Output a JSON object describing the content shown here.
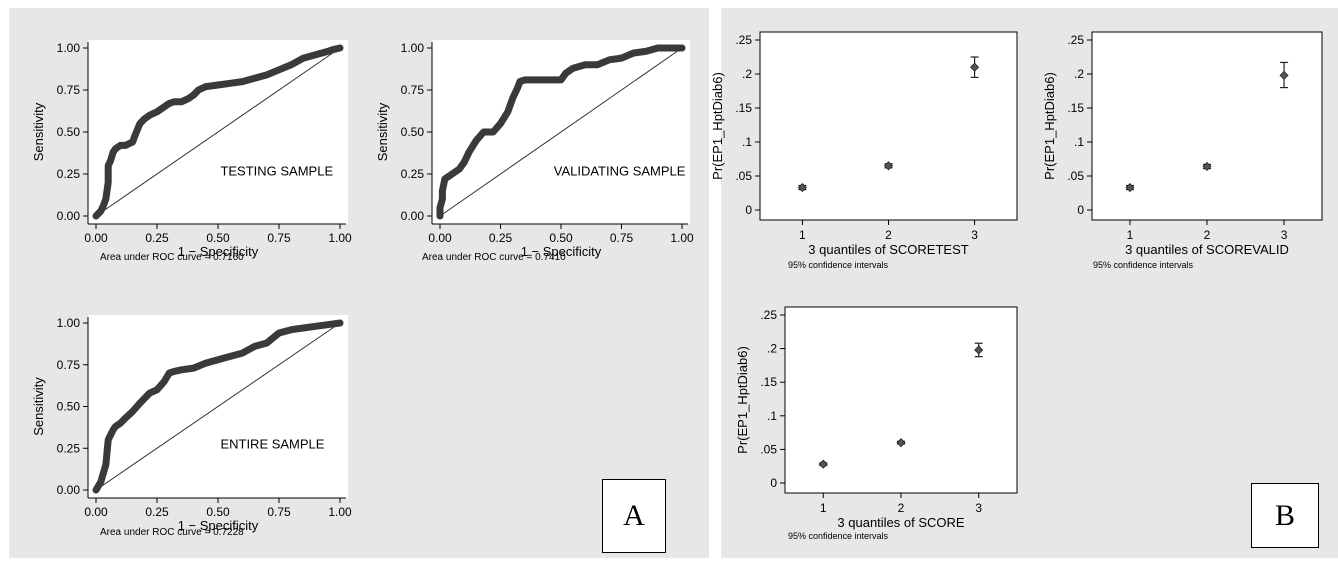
{
  "panel_a": {
    "letter": "A",
    "roc_plots": [
      {
        "label": "TESTING SAMPLE",
        "auc_text": "Area under ROC curve = 0.7160",
        "xlabel": "1 − Specificity",
        "ylabel": "Sensitivity",
        "ticks": [
          "0.00",
          "0.25",
          "0.50",
          "0.75",
          "1.00"
        ]
      },
      {
        "label": "VALIDATING SAMPLE",
        "auc_text": "Area under ROC curve = 0.7410",
        "xlabel": "1 − Specificity",
        "ylabel": "Sensitivity",
        "ticks": [
          "0.00",
          "0.25",
          "0.50",
          "0.75",
          "1.00"
        ]
      },
      {
        "label": "ENTIRE SAMPLE",
        "auc_text": "Area under ROC curve = 0.7228",
        "xlabel": "1 − Specificity",
        "ylabel": "Sensitivity",
        "ticks": [
          "0.00",
          "0.25",
          "0.50",
          "0.75",
          "1.00"
        ]
      }
    ]
  },
  "panel_b": {
    "letter": "B",
    "ci_plots": [
      {
        "xlabel": "3 quantiles of SCORETEST",
        "ylabel": "Pr(EP1_HptDiab6)",
        "note": "95% confidence intervals",
        "xticks": [
          "1",
          "2",
          "3"
        ],
        "yticks": [
          "0",
          ".05",
          ".1",
          ".15",
          ".2",
          ".25"
        ]
      },
      {
        "xlabel": "3 quantiles of SCOREVALID",
        "ylabel": "Pr(EP1_HptDiab6)",
        "note": "95% confidence intervals",
        "xticks": [
          "1",
          "2",
          "3"
        ],
        "yticks": [
          "0",
          ".05",
          ".1",
          ".15",
          ".2",
          ".25"
        ]
      },
      {
        "xlabel": "3 quantiles of SCORE",
        "ylabel": "Pr(EP1_HptDiab6)",
        "note": "95% confidence intervals",
        "xticks": [
          "1",
          "2",
          "3"
        ],
        "yticks": [
          "0",
          ".05",
          ".1",
          ".15",
          ".2",
          ".25"
        ]
      }
    ]
  },
  "chart_data": [
    {
      "type": "line",
      "title": "",
      "xlabel": "1 − Specificity",
      "ylabel": "Sensitivity",
      "xlim": [
        0,
        1
      ],
      "ylim": [
        0,
        1
      ],
      "annotation": "TESTING SAMPLE",
      "auc": 0.716,
      "series": [
        {
          "x": [
            0,
            0.02,
            0.03,
            0.04,
            0.05,
            0.05,
            0.06,
            0.07,
            0.08,
            0.1,
            0.12,
            0.15,
            0.16,
            0.18,
            0.2,
            0.22,
            0.25,
            0.28,
            0.3,
            0.32,
            0.35,
            0.38,
            0.4,
            0.42,
            0.45,
            0.5,
            0.55,
            0.6,
            0.65,
            0.7,
            0.75,
            0.8,
            0.85,
            0.9,
            0.95,
            0.97,
            1.0
          ],
          "y": [
            0,
            0.03,
            0.06,
            0.1,
            0.2,
            0.3,
            0.33,
            0.38,
            0.4,
            0.42,
            0.42,
            0.44,
            0.48,
            0.55,
            0.58,
            0.6,
            0.62,
            0.65,
            0.67,
            0.68,
            0.68,
            0.7,
            0.72,
            0.75,
            0.77,
            0.78,
            0.79,
            0.8,
            0.82,
            0.84,
            0.87,
            0.9,
            0.94,
            0.96,
            0.98,
            0.99,
            1.0
          ]
        },
        {
          "x": [
            0,
            1
          ],
          "y": [
            0,
            1
          ]
        }
      ]
    },
    {
      "type": "line",
      "title": "",
      "xlabel": "1 − Specificity",
      "ylabel": "Sensitivity",
      "xlim": [
        0,
        1
      ],
      "ylim": [
        0,
        1
      ],
      "annotation": "VALIDATING SAMPLE",
      "auc": 0.741,
      "series": [
        {
          "x": [
            0,
            0.0,
            0.01,
            0.01,
            0.02,
            0.05,
            0.08,
            0.1,
            0.12,
            0.15,
            0.18,
            0.22,
            0.25,
            0.28,
            0.3,
            0.32,
            0.33,
            0.35,
            0.4,
            0.45,
            0.5,
            0.52,
            0.55,
            0.6,
            0.65,
            0.7,
            0.75,
            0.8,
            0.85,
            0.9,
            0.95,
            1.0
          ],
          "y": [
            0,
            0.05,
            0.1,
            0.15,
            0.22,
            0.25,
            0.28,
            0.32,
            0.38,
            0.45,
            0.5,
            0.5,
            0.55,
            0.62,
            0.7,
            0.76,
            0.8,
            0.81,
            0.81,
            0.81,
            0.81,
            0.85,
            0.88,
            0.9,
            0.9,
            0.93,
            0.94,
            0.97,
            0.98,
            1.0,
            1.0,
            1.0
          ]
        },
        {
          "x": [
            0,
            1
          ],
          "y": [
            0,
            1
          ]
        }
      ]
    },
    {
      "type": "line",
      "title": "",
      "xlabel": "1 − Specificity",
      "ylabel": "Sensitivity",
      "xlim": [
        0,
        1
      ],
      "ylim": [
        0,
        1
      ],
      "annotation": "ENTIRE SAMPLE",
      "auc": 0.7228,
      "series": [
        {
          "x": [
            0,
            0.02,
            0.03,
            0.04,
            0.05,
            0.06,
            0.07,
            0.08,
            0.1,
            0.12,
            0.15,
            0.18,
            0.2,
            0.22,
            0.25,
            0.28,
            0.3,
            0.32,
            0.35,
            0.4,
            0.45,
            0.5,
            0.55,
            0.6,
            0.65,
            0.7,
            0.75,
            0.8,
            0.85,
            0.9,
            0.95,
            1.0
          ],
          "y": [
            0,
            0.05,
            0.1,
            0.15,
            0.3,
            0.33,
            0.36,
            0.38,
            0.4,
            0.43,
            0.47,
            0.52,
            0.55,
            0.58,
            0.6,
            0.65,
            0.7,
            0.71,
            0.72,
            0.73,
            0.76,
            0.78,
            0.8,
            0.82,
            0.86,
            0.88,
            0.94,
            0.96,
            0.97,
            0.98,
            0.99,
            1.0
          ]
        },
        {
          "x": [
            0,
            1
          ],
          "y": [
            0,
            1
          ]
        }
      ]
    },
    {
      "type": "scatter",
      "title": "",
      "xlabel": "3 quantiles of SCORETEST",
      "ylabel": "Pr(EP1_HptDiab6)",
      "ylim": [
        0,
        0.25
      ],
      "categories": [
        "1",
        "2",
        "3"
      ],
      "values": [
        0.033,
        0.065,
        0.21
      ],
      "ci_low": [
        0.03,
        0.062,
        0.195
      ],
      "ci_high": [
        0.036,
        0.068,
        0.225
      ],
      "note": "95% confidence intervals"
    },
    {
      "type": "scatter",
      "title": "",
      "xlabel": "3 quantiles of SCOREVALID",
      "ylabel": "Pr(EP1_HptDiab6)",
      "ylim": [
        0,
        0.25
      ],
      "categories": [
        "1",
        "2",
        "3"
      ],
      "values": [
        0.033,
        0.064,
        0.198
      ],
      "ci_low": [
        0.03,
        0.061,
        0.18
      ],
      "ci_high": [
        0.036,
        0.067,
        0.217
      ],
      "note": "95% confidence intervals"
    },
    {
      "type": "scatter",
      "title": "",
      "xlabel": "3 quantiles of SCORE",
      "ylabel": "Pr(EP1_HptDiab6)",
      "ylim": [
        0,
        0.25
      ],
      "categories": [
        "1",
        "2",
        "3"
      ],
      "values": [
        0.028,
        0.06,
        0.198
      ],
      "ci_low": [
        0.026,
        0.058,
        0.188
      ],
      "ci_high": [
        0.03,
        0.062,
        0.208
      ],
      "note": "95% confidence intervals"
    }
  ]
}
